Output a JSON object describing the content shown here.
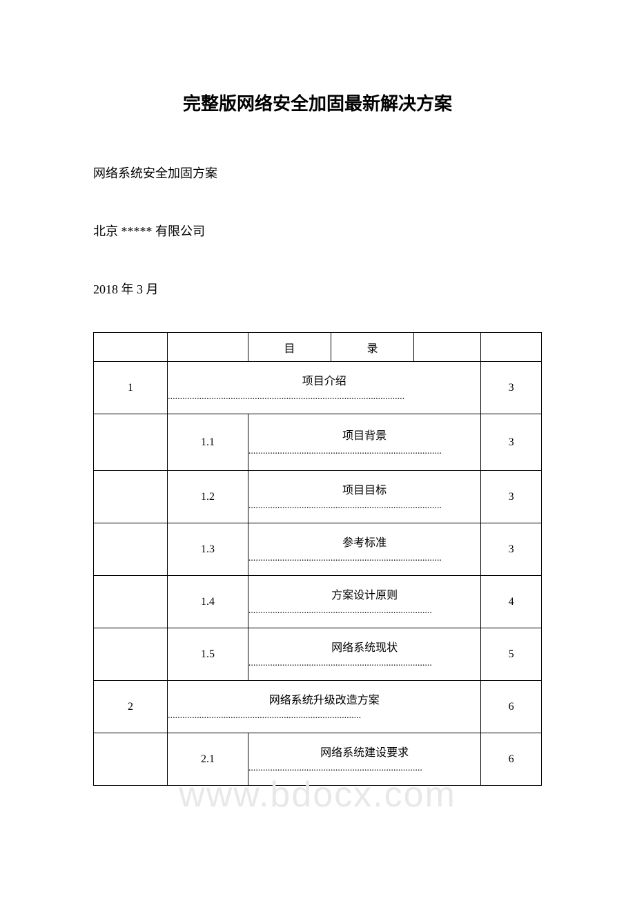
{
  "title": "完整版网络安全加固最新解决方案",
  "subtitle": "网络系统安全加固方案",
  "company": "北京 ***** 有限公司",
  "date": "2018 年 3 月",
  "watermark": "www.bdocx.com",
  "toc_header": {
    "col3": "目",
    "col4": "录"
  },
  "toc": [
    {
      "num": "1",
      "label": "项目介绍",
      "dots": "..................................................................................................",
      "page": "3",
      "indent": 1,
      "row_class": "row-h1"
    },
    {
      "num": "1.1",
      "label": "项目背景",
      "dots": "................................................................................",
      "page": "3",
      "indent": 2,
      "row_class": "row-h2"
    },
    {
      "num": "1.2",
      "label": "项目目标",
      "dots": "................................................................................",
      "page": "3",
      "indent": 2,
      "row_class": "row-h1"
    },
    {
      "num": "1.3",
      "label": "参考标准",
      "dots": "................................................................................",
      "page": "3",
      "indent": 2,
      "row_class": "row-h1"
    },
    {
      "num": "1.4",
      "label": "方案设计原则",
      "dots": "............................................................................",
      "page": "4",
      "indent": 2,
      "row_class": "row-h1"
    },
    {
      "num": "1.5",
      "label": "网络系统现状",
      "dots": "............................................................................",
      "page": "5",
      "indent": 2,
      "row_class": "row-h1"
    },
    {
      "num": "2",
      "label": "网络系统升级改造方案",
      "dots": "................................................................................",
      "page": "6",
      "indent": 1,
      "row_class": "row-h1"
    },
    {
      "num": "2.1",
      "label": "网络系统建设要求",
      "dots": "........................................................................",
      "page": "6",
      "indent": 2,
      "row_class": "row-h1"
    }
  ],
  "colors": {
    "background": "#ffffff",
    "text": "#000000",
    "border": "#000000",
    "watermark": "#e8e8e8"
  }
}
